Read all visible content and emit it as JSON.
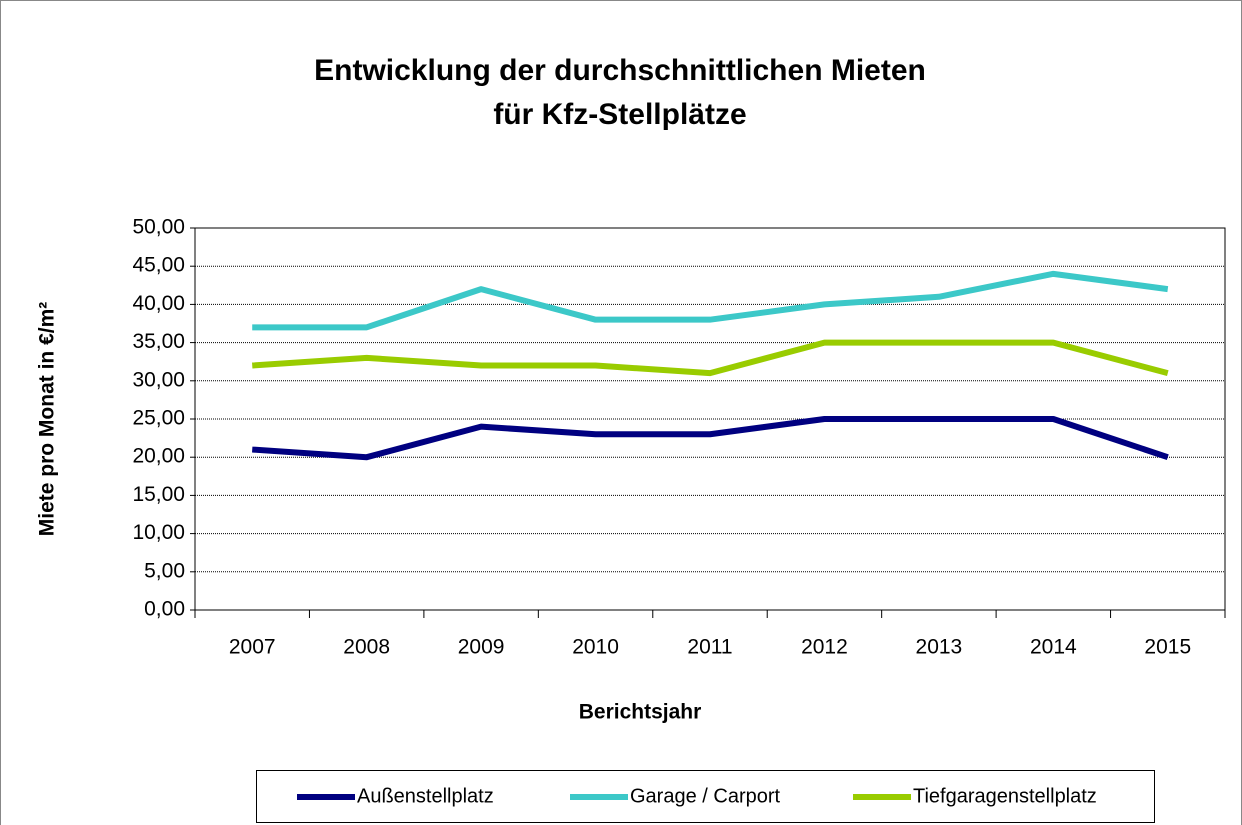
{
  "chart_data": {
    "type": "line",
    "title": [
      "Entwicklung der durchschnittlichen Mieten",
      "für Kfz-Stellplätze"
    ],
    "x_label": "Berichtsjahr",
    "y_label": "Miete pro Monat in €/m²",
    "categories": [
      "2007",
      "2008",
      "2009",
      "2010",
      "2011",
      "2012",
      "2013",
      "2014",
      "2015"
    ],
    "series": [
      {
        "name": "Außenstellplatz",
        "color": "#000080",
        "values": [
          21,
          20,
          24,
          23,
          23,
          25,
          25,
          25,
          20
        ]
      },
      {
        "name": "Garage / Carport",
        "color": "#3cc8c8",
        "values": [
          37,
          37,
          42,
          38,
          38,
          40,
          41,
          44,
          42
        ]
      },
      {
        "name": "Tiefgaragenstellplatz",
        "color": "#99cc00",
        "values": [
          32,
          33,
          32,
          32,
          31,
          35,
          35,
          35,
          31
        ]
      }
    ],
    "ylim": [
      0,
      50
    ],
    "yticks": [
      {
        "value": 0,
        "label": "0,00"
      },
      {
        "value": 5,
        "label": "5,00"
      },
      {
        "value": 10,
        "label": "10,00"
      },
      {
        "value": 15,
        "label": "15,00"
      },
      {
        "value": 20,
        "label": "20,00"
      },
      {
        "value": 25,
        "label": "25,00"
      },
      {
        "value": 30,
        "label": "30,00"
      },
      {
        "value": 35,
        "label": "35,00"
      },
      {
        "value": 40,
        "label": "40,00"
      },
      {
        "value": 45,
        "label": "45,00"
      },
      {
        "value": 50,
        "label": "50,00"
      }
    ],
    "grid": true,
    "legend": "bottom"
  }
}
